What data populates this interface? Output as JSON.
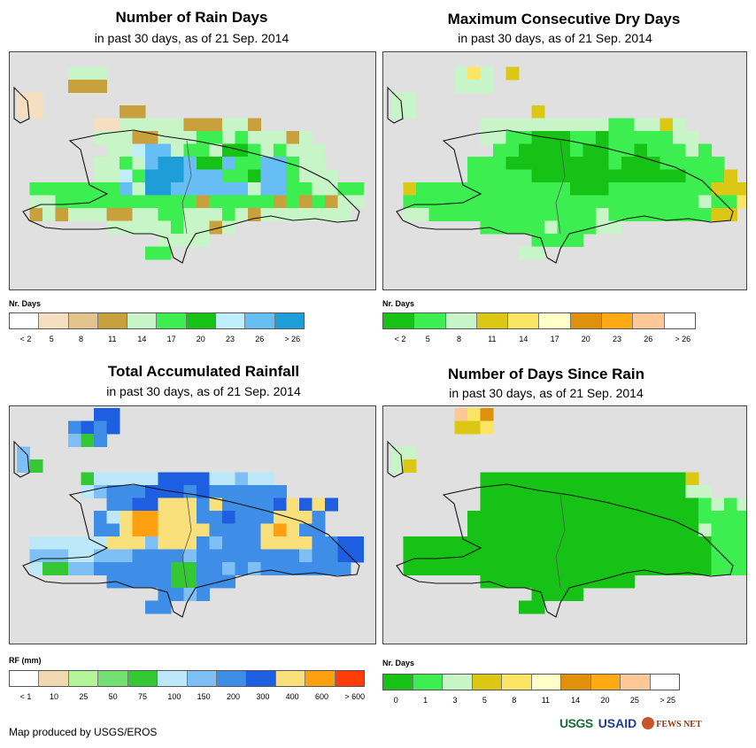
{
  "panels": [
    {
      "id": "rain-days",
      "title": "Number of Rain Days",
      "subtitle": "in past 30 days, as of 21 Sep. 2014",
      "legend_title": "Nr. Days",
      "legend_colors": [
        "#ffffff",
        "#f5dfc0",
        "#e2c48c",
        "#c8a03c",
        "#c8f5c8",
        "#3cee50",
        "#16c216",
        "#bfeefc",
        "#66bef5",
        "#1e9ed8"
      ],
      "legend_labels": [
        "< 2",
        "5",
        "8",
        "11",
        "14",
        "17",
        "20",
        "23",
        "26",
        "> 26"
      ],
      "grid": [
        "..............................",
        "....EEE.......................",
        "....DDD.......................",
        "BB............................",
        "BB......DD....................",
        "......BBEEEEEDDDEED...........",
        "......EEEDDEEEFFEFEEEDE.......",
        ".......EEHIIEFFEGGFEFEEE......",
        "......EEFEIJJIGGIFFIIFEE......",
        "......EEHFJJJIIIFFGIIFEEE.....",
        ".FFFFFFFIEJJIIIIIIEIIFFEEFF...",
        ".EEFFFFFFFFFFFDFFFFFDFDFDEE...",
        ".DEDEEEDDEEFFEEEFEDEEEEEEE....",
        ".......EEEEEFEEDE.............",
        "...........EEEE...............",
        "..........FF..................",
        ".............................."
      ]
    },
    {
      "id": "dry-days",
      "title": "Maximum Consecutive Dry Days",
      "subtitle": "in past 30 days, as of 21 Sep. 2014",
      "legend_title": "Nr. Days",
      "legend_colors": [
        "#16c216",
        "#3cee50",
        "#c8f5c8",
        "#dcc814",
        "#fae664",
        "#ffffc8",
        "#e0900a",
        "#ffaa14",
        "#ffc896",
        "#ffffff"
      ],
      "legend_labels": [
        "< 2",
        "5",
        "8",
        "11",
        "14",
        "17",
        "20",
        "23",
        "26",
        "> 26"
      ],
      "grid": [
        "..............................",
        ".....CEC.D....................",
        ".....CCC......................",
        "CC............................",
        "CC.........D..................",
        ".......CCCCCCCCCCBBCCDC.......",
        ".......CCBBAAABBABBBBBCC......",
        "........BBAAAABAABBABBBCB.....",
        "......BBBAAAAAAAABAAABBBBB....",
        "......BBBBBAAAAAAAAAAAABBBD...",
        ".DBBBBBBBBBBBBAAABBBBBBBBDDD..",
        ".BBBBBBBBBBBBBBBBBBBBBBBCBBE..",
        ".CCBBBBBBBBBBBBBCBBBBBBBBDD...",
        ".......BBBBBCBBBCC............",
        "...........BBBB...............",
        "..........CC..................",
        ".............................."
      ]
    },
    {
      "id": "total-rainfall",
      "title": "Total Accumulated Rainfall",
      "subtitle": "in past 30 days, as of 21 Sep. 2014",
      "legend_title": "RF (mm)",
      "legend_colors": [
        "#ffffff",
        "#f0d9b0",
        "#b4f59a",
        "#74e074",
        "#34c834",
        "#bce8fa",
        "#7ec0f5",
        "#3e8ee8",
        "#1e5ee0",
        "#fae07a",
        "#ffa010",
        "#ff3c0a"
      ],
      "legend_labels": [
        "< 1",
        "10",
        "25",
        "50",
        "75",
        "100",
        "150",
        "200",
        "300",
        "400",
        "600",
        "> 600"
      ],
      "grid": [
        "......II......................",
        "....HIHI......................",
        "....GEH.......................",
        "G.............................",
        "GE............................",
        ".....EFFFFFIIIIFFGFF..........",
        ".....FGHHHIIIHIHHHHHH.........",
        ".......HHIIJJJHJHHHHIJIJI.....",
        "......HFJKKJJJHHIHHHJJJH......",
        "......HHJKKJJJJHHHHJKJHH......",
        ".FFFFFFJJJGJJJHGHHHJJJJHHII...",
        ".GGGFFGGGHHHHGHHHHHHHHGHHII...",
        ".FEEGGHHHHHHEEHHGHGHHHHHHH....",
        ".......HHHHHEEHHH.............",
        "...........HHGH...............",
        "..........HH..................",
        ".............................."
      ]
    },
    {
      "id": "days-since-rain",
      "title": "Number of Days Since Rain",
      "subtitle": "in past 30 days, as of 21 Sep. 2014",
      "legend_title": "Nr. Days",
      "legend_colors": [
        "#16c216",
        "#3cee50",
        "#c8f5c8",
        "#dcc814",
        "#fae664",
        "#ffffc8",
        "#e0900a",
        "#ffaa14",
        "#ffc896",
        "#ffffff"
      ],
      "legend_labels": [
        "0",
        "1",
        "3",
        "5",
        "8",
        "11",
        "14",
        "20",
        "25",
        "> 25"
      ],
      "grid": [
        ".....IEG......................",
        ".....DDE......................",
        "..............................",
        "CC............................",
        "CD............................",
        ".......AAAAAAAAAAAAAAAAD......",
        ".......AAAAAAAAAAAAAAAACC.....",
        ".......AAAAAAAAAAAAAAAAABCBCD.",
        "......AAAAAAAAAAAAAAAAAABBBBE.",
        "......AAAAAAAAAAAAAAAAAACBBBB.",
        ".AAAAAAAAAAAAAAAAAAAAAAAABBBB.",
        ".AAAAAAAAAAAAAAAAAAAAAAAABBBBG",
        ".AAAAAAAAAAAAAAAAAAAAAAAABBBD.",
        ".......AAAAAAAAAAAA...........",
        "...........AAAA...............",
        "..........AA..................",
        ".............................."
      ]
    }
  ],
  "credit": "Map produced by USGS/EROS",
  "logos": {
    "usgs": "USGS",
    "usaid": "USAID",
    "fews": "FEWS NET"
  }
}
